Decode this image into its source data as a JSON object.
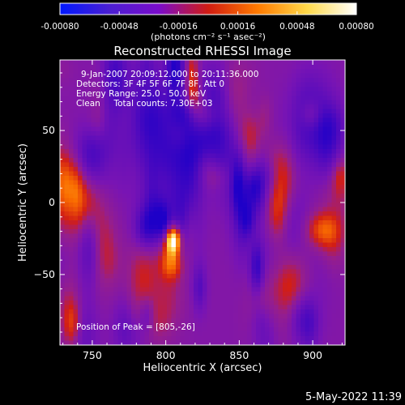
{
  "chart_data": {
    "type": "heatmap",
    "title": "Reconstructed RHESSI Image",
    "xlabel": "Heliocentric X (arcsec)",
    "ylabel": "Heliocentric Y (arcsec)",
    "xlim": [
      728,
      922
    ],
    "ylim": [
      -99,
      99
    ],
    "x_ticks": [
      750,
      800,
      850,
      900
    ],
    "y_ticks": [
      50,
      0,
      -50
    ],
    "x_tick_labels": [
      "750",
      "800",
      "850",
      "900"
    ],
    "y_tick_labels": [
      "50",
      "0",
      "−50"
    ],
    "colorbar": {
      "min": -0.0008,
      "max": 0.0008,
      "ticks": [
        -0.0008,
        -0.00048,
        -0.00016,
        0.00016,
        0.00048,
        0.0008
      ],
      "tick_labels": [
        "-0.00080",
        "-0.00048",
        "-0.00016",
        "0.00016",
        "0.00048",
        "0.00080"
      ],
      "units_label": "(photons cm⁻² s⁻¹ asec⁻²)",
      "colors": [
        "#0018ff",
        "#4b1fd2",
        "#7a0ccb",
        "#d11c12",
        "#ff7a00",
        "#ffd94a",
        "#ffffff"
      ]
    },
    "annotations": [
      "9-Jan-2007 20:09:12.000 to 20:11:36.000",
      "Detectors: 3F 4F 5F 6F 7F 8F, Att 0",
      "Energy Range: 25.0 - 50.0 keV",
      "Clean     Total counts: 7.30E+03"
    ],
    "peak_label": "Position of Peak = [805,-26]",
    "peak": {
      "x": 805,
      "y": -26
    },
    "grid": false
  },
  "footer": {
    "timestamp": "5-May-2022 11:39"
  }
}
